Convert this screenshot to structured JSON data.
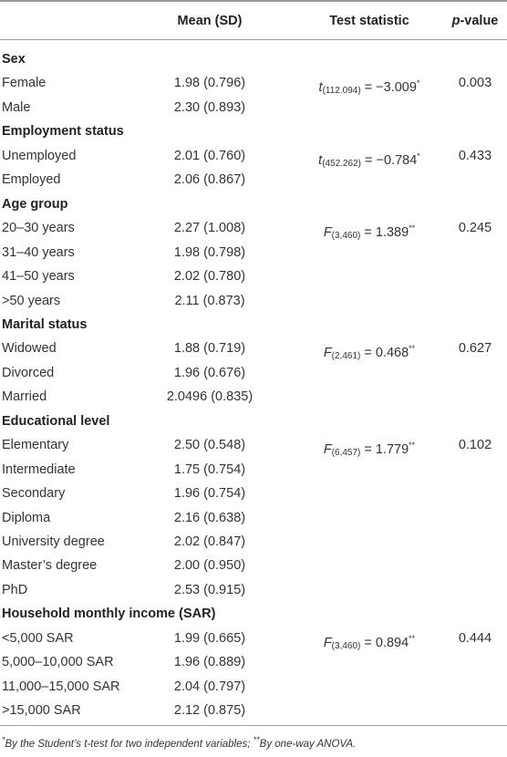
{
  "header": {
    "col2": "Mean (SD)",
    "col3": "Test statistic",
    "col4_italic": "p",
    "col4_rest": "-value"
  },
  "rows": [
    {
      "label": "Sex",
      "group": true
    },
    {
      "label": "Female",
      "mean": "1.98 (0.796)",
      "stat_sym": "t",
      "stat_sub": "(112.094)",
      "stat_val": " = −3.009",
      "stat_sup": "*",
      "p": "0.003"
    },
    {
      "label": "Male",
      "mean": "2.30 (0.893)"
    },
    {
      "label": "Employment status",
      "group": true
    },
    {
      "label": "Unemployed",
      "mean": "2.01 (0.760)",
      "stat_sym": "t",
      "stat_sub": "(452.262)",
      "stat_val": " = −0.784",
      "stat_sup": "*",
      "p": "0.433"
    },
    {
      "label": "Employed",
      "mean": "2.06 (0.867)"
    },
    {
      "label": "Age group",
      "group": true
    },
    {
      "label": "20–30 years",
      "mean": "2.27 (1.008)",
      "stat_sym": "F",
      "stat_sub": "(3,460)",
      "stat_val": " = 1.389",
      "stat_sup": "**",
      "p": "0.245"
    },
    {
      "label": "31–40 years",
      "mean": "1.98 (0.798)"
    },
    {
      "label": "41–50 years",
      "mean": "2.02 (0.780)"
    },
    {
      "label": ">50 years",
      "mean": "2.11 (0.873)"
    },
    {
      "label": "Marital status",
      "group": true
    },
    {
      "label": "Widowed",
      "mean": "1.88 (0.719)",
      "stat_sym": "F",
      "stat_sub": "(2,461)",
      "stat_val": " = 0.468",
      "stat_sup": "**",
      "p": "0.627"
    },
    {
      "label": "Divorced",
      "mean": "1.96 (0.676)"
    },
    {
      "label": "Married",
      "mean": "2.0496 (0.835)"
    },
    {
      "label": "Educational level",
      "group": true
    },
    {
      "label": "Elementary",
      "mean": "2.50 (0.548)",
      "stat_sym": "F",
      "stat_sub": "(6,457)",
      "stat_val": " = 1.779",
      "stat_sup": "**",
      "p": "0.102"
    },
    {
      "label": "Intermediate",
      "mean": "1.75 (0.754)"
    },
    {
      "label": "Secondary",
      "mean": "1.96 (0.754)"
    },
    {
      "label": "Diploma",
      "mean": "2.16 (0.638)"
    },
    {
      "label": "University degree",
      "mean": "2.02 (0.847)"
    },
    {
      "label": "Master’s degree",
      "mean": "2.00 (0.950)"
    },
    {
      "label": "PhD",
      "mean": "2.53 (0.915)"
    },
    {
      "label": "Household monthly income (SAR)",
      "group": true
    },
    {
      "label": "<5,000 SAR",
      "mean": "1.99 (0.665)",
      "stat_sym": "F",
      "stat_sub": "(3,460)",
      "stat_val": " = 0.894",
      "stat_sup": "**",
      "p": "0.444"
    },
    {
      "label": "5,000–10,000 SAR",
      "mean": "1.96 (0.889)"
    },
    {
      "label": "11,000–15,000 SAR",
      "mean": "2.04 (0.797)"
    },
    {
      "label": ">15,000 SAR",
      "mean": "2.12 (0.875)"
    }
  ],
  "footnote": {
    "star1": "*",
    "text1": "By the Student’s t-test for two independent variables; ",
    "star2": "**",
    "text2": "By one-way ANOVA."
  }
}
